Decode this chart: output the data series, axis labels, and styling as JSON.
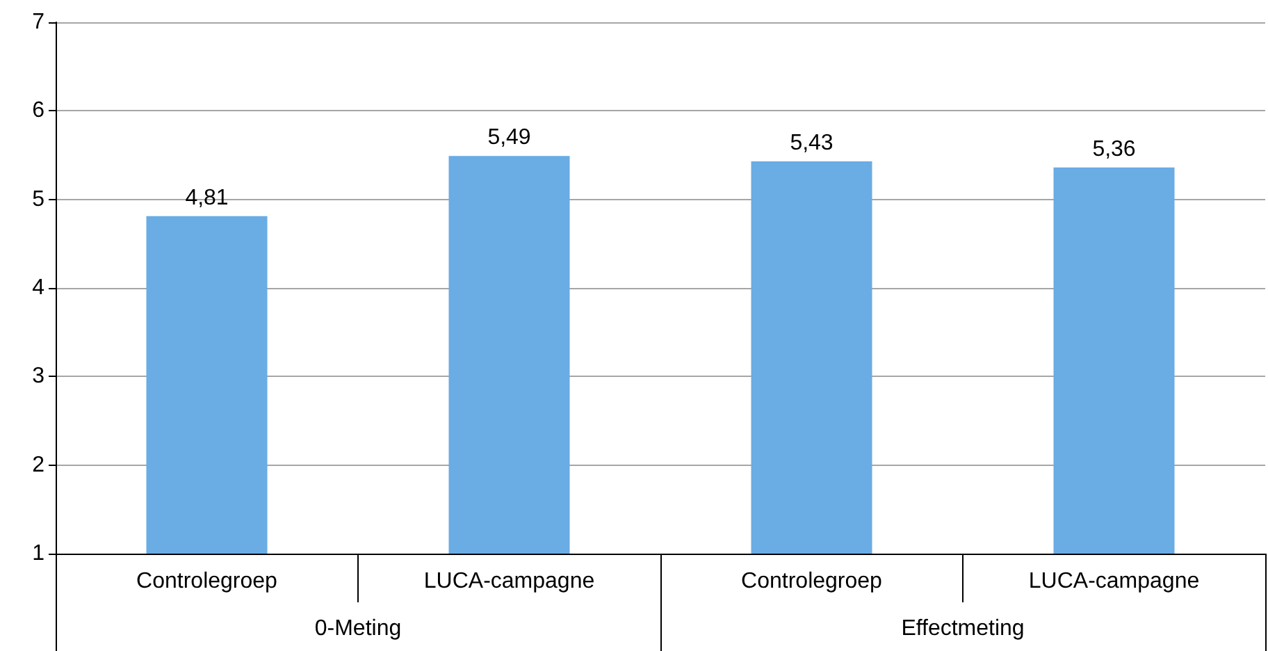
{
  "chart_data": {
    "type": "bar",
    "categories": [
      "Controlegroep",
      "LUCA-campagne",
      "Controlegroep",
      "LUCA-campagne"
    ],
    "values": [
      4.81,
      5.49,
      5.43,
      5.36
    ],
    "value_labels": [
      "4,81",
      "5,49",
      "5,43",
      "5,36"
    ],
    "color": "#6aace4",
    "annotations": [
      "0-Meting",
      "Effectmeting"
    ],
    "ylim": [
      1,
      7
    ],
    "yticks": [
      1,
      2,
      3,
      4,
      5,
      6,
      7
    ],
    "grid": "y"
  }
}
